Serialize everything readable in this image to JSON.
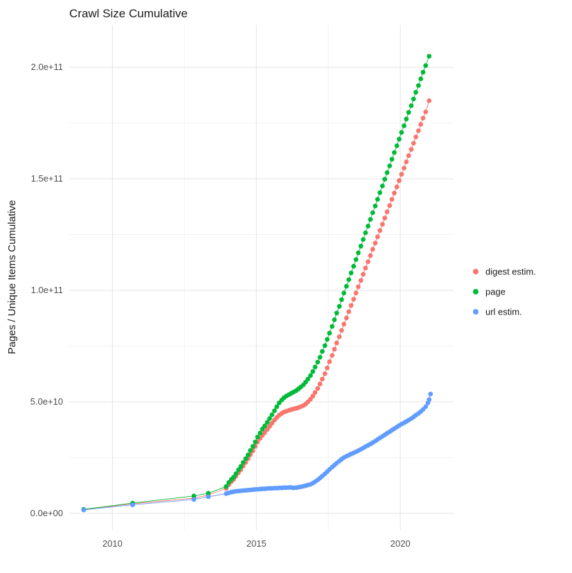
{
  "chart_data": {
    "type": "scatter",
    "title": "Crawl Size Cumulative",
    "xlabel": "",
    "ylabel": "Pages / Unique Items Cumulative",
    "y_unit_note": "y values stored in units of 1e10 items",
    "xlim": [
      2008.5,
      2021.85
    ],
    "ylim": [
      -0.75,
      21.9
    ],
    "grid": true,
    "legend_position": "right",
    "x_ticks": {
      "values": [
        2010,
        2015,
        2020
      ],
      "labels": [
        "2010",
        "2015",
        "2020"
      ]
    },
    "y_ticks": {
      "values": [
        0,
        5,
        10,
        15,
        20
      ],
      "labels": [
        "0.0e+00",
        "5.0e+10",
        "1.0e+11",
        "1.5e+11",
        "2.0e+11"
      ]
    },
    "x_minor": [
      2012.5,
      2017.5
    ],
    "y_minor": [
      2.5,
      7.5,
      12.5,
      17.5
    ],
    "series": [
      {
        "name": "digest estim.",
        "color": "#F8766D",
        "points": [
          [
            2009.0,
            0.17
          ],
          [
            2010.7,
            0.43
          ],
          [
            2012.83,
            0.68
          ],
          [
            2013.33,
            0.82
          ],
          [
            2013.95,
            1.12
          ],
          [
            2014.04,
            1.28
          ],
          [
            2014.13,
            1.42
          ],
          [
            2014.21,
            1.52
          ],
          [
            2014.29,
            1.66
          ],
          [
            2014.38,
            1.82
          ],
          [
            2014.46,
            1.96
          ],
          [
            2014.54,
            2.12
          ],
          [
            2014.63,
            2.28
          ],
          [
            2014.71,
            2.45
          ],
          [
            2014.79,
            2.63
          ],
          [
            2014.88,
            2.8
          ],
          [
            2014.96,
            3.0
          ],
          [
            2015.04,
            3.2
          ],
          [
            2015.13,
            3.36
          ],
          [
            2015.21,
            3.5
          ],
          [
            2015.29,
            3.62
          ],
          [
            2015.38,
            3.76
          ],
          [
            2015.46,
            3.9
          ],
          [
            2015.54,
            4.04
          ],
          [
            2015.63,
            4.18
          ],
          [
            2015.71,
            4.3
          ],
          [
            2015.79,
            4.4
          ],
          [
            2015.88,
            4.48
          ],
          [
            2015.96,
            4.54
          ],
          [
            2016.04,
            4.58
          ],
          [
            2016.13,
            4.62
          ],
          [
            2016.21,
            4.65
          ],
          [
            2016.29,
            4.68
          ],
          [
            2016.38,
            4.71
          ],
          [
            2016.46,
            4.74
          ],
          [
            2016.54,
            4.78
          ],
          [
            2016.63,
            4.83
          ],
          [
            2016.71,
            4.9
          ],
          [
            2016.79,
            5.0
          ],
          [
            2016.88,
            5.12
          ],
          [
            2016.96,
            5.26
          ],
          [
            2017.04,
            5.42
          ],
          [
            2017.13,
            5.6
          ],
          [
            2017.21,
            5.8
          ],
          [
            2017.29,
            6.02
          ],
          [
            2017.38,
            6.26
          ],
          [
            2017.46,
            6.52
          ],
          [
            2017.54,
            6.8
          ],
          [
            2017.63,
            7.08
          ],
          [
            2017.71,
            7.36
          ],
          [
            2017.79,
            7.64
          ],
          [
            2017.88,
            7.92
          ],
          [
            2017.96,
            8.2
          ],
          [
            2018.04,
            8.48
          ],
          [
            2018.13,
            8.76
          ],
          [
            2018.21,
            9.04
          ],
          [
            2018.29,
            9.32
          ],
          [
            2018.38,
            9.6
          ],
          [
            2018.46,
            9.88
          ],
          [
            2018.54,
            10.16
          ],
          [
            2018.63,
            10.44
          ],
          [
            2018.71,
            10.72
          ],
          [
            2018.79,
            11.0
          ],
          [
            2018.88,
            11.28
          ],
          [
            2018.96,
            11.56
          ],
          [
            2019.04,
            11.84
          ],
          [
            2019.13,
            12.12
          ],
          [
            2019.21,
            12.4
          ],
          [
            2019.29,
            12.68
          ],
          [
            2019.38,
            12.96
          ],
          [
            2019.46,
            13.24
          ],
          [
            2019.54,
            13.52
          ],
          [
            2019.63,
            13.8
          ],
          [
            2019.71,
            14.08
          ],
          [
            2019.79,
            14.36
          ],
          [
            2019.88,
            14.64
          ],
          [
            2019.96,
            14.92
          ],
          [
            2020.04,
            15.2
          ],
          [
            2020.13,
            15.48
          ],
          [
            2020.21,
            15.76
          ],
          [
            2020.29,
            16.04
          ],
          [
            2020.38,
            16.32
          ],
          [
            2020.46,
            16.6
          ],
          [
            2020.54,
            16.88
          ],
          [
            2020.63,
            17.16
          ],
          [
            2020.71,
            17.44
          ],
          [
            2020.79,
            17.72
          ],
          [
            2020.88,
            18.0
          ],
          [
            2021.0,
            18.5
          ]
        ]
      },
      {
        "name": "page",
        "color": "#00BA38",
        "points": [
          [
            2009.0,
            0.18
          ],
          [
            2010.7,
            0.46
          ],
          [
            2012.83,
            0.78
          ],
          [
            2013.33,
            0.9
          ],
          [
            2013.95,
            1.2
          ],
          [
            2014.04,
            1.38
          ],
          [
            2014.13,
            1.52
          ],
          [
            2014.21,
            1.62
          ],
          [
            2014.29,
            1.78
          ],
          [
            2014.38,
            1.95
          ],
          [
            2014.46,
            2.1
          ],
          [
            2014.54,
            2.28
          ],
          [
            2014.63,
            2.45
          ],
          [
            2014.71,
            2.62
          ],
          [
            2014.79,
            2.82
          ],
          [
            2014.88,
            3.0
          ],
          [
            2014.96,
            3.2
          ],
          [
            2015.04,
            3.42
          ],
          [
            2015.13,
            3.6
          ],
          [
            2015.21,
            3.78
          ],
          [
            2015.29,
            3.92
          ],
          [
            2015.38,
            4.08
          ],
          [
            2015.46,
            4.25
          ],
          [
            2015.54,
            4.42
          ],
          [
            2015.63,
            4.6
          ],
          [
            2015.71,
            4.78
          ],
          [
            2015.79,
            4.95
          ],
          [
            2015.88,
            5.08
          ],
          [
            2015.96,
            5.18
          ],
          [
            2016.04,
            5.26
          ],
          [
            2016.13,
            5.32
          ],
          [
            2016.21,
            5.38
          ],
          [
            2016.29,
            5.44
          ],
          [
            2016.38,
            5.5
          ],
          [
            2016.46,
            5.58
          ],
          [
            2016.54,
            5.66
          ],
          [
            2016.63,
            5.76
          ],
          [
            2016.71,
            5.88
          ],
          [
            2016.79,
            6.02
          ],
          [
            2016.88,
            6.18
          ],
          [
            2016.96,
            6.36
          ],
          [
            2017.04,
            6.56
          ],
          [
            2017.13,
            6.78
          ],
          [
            2017.21,
            7.0
          ],
          [
            2017.29,
            7.26
          ],
          [
            2017.38,
            7.52
          ],
          [
            2017.46,
            7.8
          ],
          [
            2017.54,
            8.08
          ],
          [
            2017.63,
            8.38
          ],
          [
            2017.71,
            8.68
          ],
          [
            2017.79,
            8.98
          ],
          [
            2017.88,
            9.28
          ],
          [
            2017.96,
            9.58
          ],
          [
            2018.04,
            9.88
          ],
          [
            2018.13,
            10.18
          ],
          [
            2018.21,
            10.48
          ],
          [
            2018.29,
            10.78
          ],
          [
            2018.38,
            11.08
          ],
          [
            2018.46,
            11.38
          ],
          [
            2018.54,
            11.68
          ],
          [
            2018.63,
            11.98
          ],
          [
            2018.71,
            12.28
          ],
          [
            2018.79,
            12.58
          ],
          [
            2018.88,
            12.88
          ],
          [
            2018.96,
            13.18
          ],
          [
            2019.04,
            13.48
          ],
          [
            2019.13,
            13.78
          ],
          [
            2019.21,
            14.08
          ],
          [
            2019.29,
            14.38
          ],
          [
            2019.38,
            14.68
          ],
          [
            2019.46,
            14.98
          ],
          [
            2019.54,
            15.28
          ],
          [
            2019.63,
            15.58
          ],
          [
            2019.71,
            15.88
          ],
          [
            2019.79,
            16.18
          ],
          [
            2019.88,
            16.48
          ],
          [
            2019.96,
            16.78
          ],
          [
            2020.04,
            17.08
          ],
          [
            2020.13,
            17.38
          ],
          [
            2020.21,
            17.68
          ],
          [
            2020.29,
            17.98
          ],
          [
            2020.38,
            18.28
          ],
          [
            2020.46,
            18.58
          ],
          [
            2020.54,
            18.88
          ],
          [
            2020.63,
            19.18
          ],
          [
            2020.71,
            19.48
          ],
          [
            2020.79,
            19.78
          ],
          [
            2020.88,
            20.08
          ],
          [
            2021.0,
            20.5
          ]
        ]
      },
      {
        "name": "url estim.",
        "color": "#619CFF",
        "points": [
          [
            2009.0,
            0.15
          ],
          [
            2010.7,
            0.38
          ],
          [
            2012.83,
            0.62
          ],
          [
            2013.33,
            0.74
          ],
          [
            2013.95,
            0.88
          ],
          [
            2014.04,
            0.92
          ],
          [
            2014.13,
            0.95
          ],
          [
            2014.21,
            0.97
          ],
          [
            2014.29,
            0.99
          ],
          [
            2014.38,
            1.0
          ],
          [
            2014.46,
            1.01
          ],
          [
            2014.54,
            1.02
          ],
          [
            2014.63,
            1.03
          ],
          [
            2014.71,
            1.04
          ],
          [
            2014.79,
            1.05
          ],
          [
            2014.88,
            1.06
          ],
          [
            2014.96,
            1.07
          ],
          [
            2015.04,
            1.08
          ],
          [
            2015.13,
            1.09
          ],
          [
            2015.21,
            1.1
          ],
          [
            2015.29,
            1.1
          ],
          [
            2015.38,
            1.11
          ],
          [
            2015.46,
            1.12
          ],
          [
            2015.54,
            1.12
          ],
          [
            2015.63,
            1.13
          ],
          [
            2015.71,
            1.13
          ],
          [
            2015.79,
            1.14
          ],
          [
            2015.88,
            1.14
          ],
          [
            2015.96,
            1.15
          ],
          [
            2016.04,
            1.15
          ],
          [
            2016.13,
            1.16
          ],
          [
            2016.21,
            1.16
          ],
          [
            2016.29,
            1.14
          ],
          [
            2016.38,
            1.15
          ],
          [
            2016.46,
            1.17
          ],
          [
            2016.54,
            1.19
          ],
          [
            2016.63,
            1.21
          ],
          [
            2016.71,
            1.24
          ],
          [
            2016.79,
            1.27
          ],
          [
            2016.88,
            1.3
          ],
          [
            2016.96,
            1.35
          ],
          [
            2017.04,
            1.42
          ],
          [
            2017.13,
            1.5
          ],
          [
            2017.21,
            1.58
          ],
          [
            2017.29,
            1.67
          ],
          [
            2017.38,
            1.77
          ],
          [
            2017.46,
            1.87
          ],
          [
            2017.54,
            1.97
          ],
          [
            2017.63,
            2.07
          ],
          [
            2017.71,
            2.16
          ],
          [
            2017.79,
            2.25
          ],
          [
            2017.88,
            2.34
          ],
          [
            2017.96,
            2.43
          ],
          [
            2018.04,
            2.5
          ],
          [
            2018.13,
            2.56
          ],
          [
            2018.21,
            2.61
          ],
          [
            2018.29,
            2.66
          ],
          [
            2018.38,
            2.71
          ],
          [
            2018.46,
            2.76
          ],
          [
            2018.54,
            2.81
          ],
          [
            2018.63,
            2.87
          ],
          [
            2018.71,
            2.93
          ],
          [
            2018.79,
            2.99
          ],
          [
            2018.88,
            3.05
          ],
          [
            2018.96,
            3.11
          ],
          [
            2019.04,
            3.17
          ],
          [
            2019.13,
            3.24
          ],
          [
            2019.21,
            3.31
          ],
          [
            2019.29,
            3.38
          ],
          [
            2019.38,
            3.45
          ],
          [
            2019.46,
            3.52
          ],
          [
            2019.54,
            3.59
          ],
          [
            2019.63,
            3.66
          ],
          [
            2019.71,
            3.73
          ],
          [
            2019.79,
            3.8
          ],
          [
            2019.88,
            3.87
          ],
          [
            2019.96,
            3.94
          ],
          [
            2020.04,
            4.0
          ],
          [
            2020.13,
            4.06
          ],
          [
            2020.21,
            4.12
          ],
          [
            2020.29,
            4.18
          ],
          [
            2020.38,
            4.25
          ],
          [
            2020.46,
            4.32
          ],
          [
            2020.54,
            4.4
          ],
          [
            2020.63,
            4.48
          ],
          [
            2020.71,
            4.56
          ],
          [
            2020.79,
            4.66
          ],
          [
            2020.88,
            4.78
          ],
          [
            2020.96,
            4.95
          ],
          [
            2021.0,
            5.1
          ],
          [
            2021.05,
            5.35
          ]
        ]
      }
    ]
  },
  "colors": {
    "background": "#ffffff",
    "grid_major": "#e3e3e3",
    "grid_minor": "#f2f2f2",
    "tick_label": "#4d4d4d",
    "text": "#1a1a1a"
  }
}
